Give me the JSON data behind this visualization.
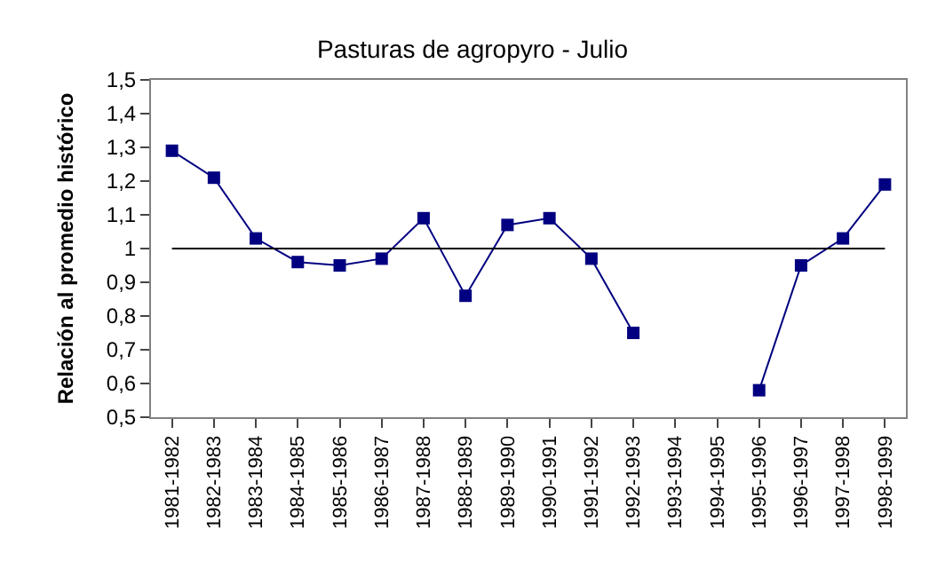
{
  "chart_data": {
    "type": "line",
    "title": "Pasturas de agropyro - Julio",
    "ylabel": "Relación al promedio histórico",
    "categories": [
      "1981-1982",
      "1982-1983",
      "1983-1984",
      "1984-1985",
      "1985-1986",
      "1986-1987",
      "1987-1988",
      "1988-1989",
      "1989-1990",
      "1990-1991",
      "1991-1992",
      "1992-1993",
      "1993-1994",
      "1994-1995",
      "1995-1996",
      "1996-1997",
      "1997-1998",
      "1998-1999"
    ],
    "series": [
      {
        "color": "#000080",
        "values": [
          1.29,
          1.21,
          1.03,
          0.96,
          0.95,
          0.97,
          1.09,
          0.86,
          1.07,
          1.09,
          0.97,
          0.75,
          null,
          null,
          0.58,
          0.95,
          1.03,
          1.19
        ]
      }
    ],
    "ylim": [
      0.5,
      1.5
    ],
    "yticks": [
      {
        "value": 0.5,
        "label": "0,5"
      },
      {
        "value": 0.6,
        "label": "0,6"
      },
      {
        "value": 0.7,
        "label": "0,7"
      },
      {
        "value": 0.8,
        "label": "0,8"
      },
      {
        "value": 0.9,
        "label": "0,9"
      },
      {
        "value": 1,
        "label": "1"
      },
      {
        "value": 1.1,
        "label": "1,1"
      },
      {
        "value": 1.2,
        "label": "1,2"
      },
      {
        "value": 1.3,
        "label": "1,3"
      },
      {
        "value": 1.4,
        "label": "1,4"
      },
      {
        "value": 1.5,
        "label": "1,5"
      }
    ],
    "ref_lines": [
      {
        "axis": "y",
        "value": 1,
        "color": "#000000"
      }
    ],
    "marker": "square",
    "line_style": "solid"
  }
}
